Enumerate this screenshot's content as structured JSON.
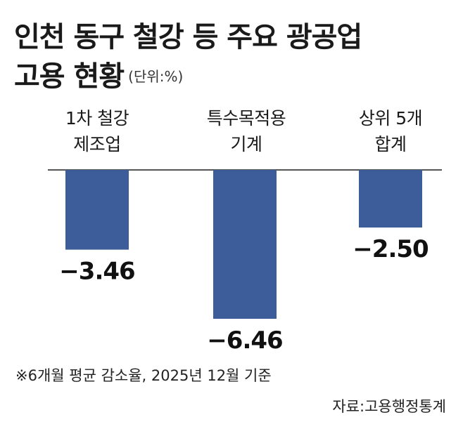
{
  "title": {
    "line1": "인천 동구 철강 등 주요 광공업",
    "line2": "고용 현황",
    "unit": "(단위:%)"
  },
  "footnote": "※6개월 평균 감소율, 2025년 12월 기준",
  "source": "자료:고용행정통계",
  "colors": {
    "bar": "#3d5d9a",
    "axis": "#555555"
  },
  "chart_data": {
    "type": "bar",
    "categories": [
      [
        "1차 철강",
        "제조업"
      ],
      [
        "특수목적용",
        "기계"
      ],
      [
        "상위 5개",
        "합계"
      ]
    ],
    "values": [
      -3.46,
      -6.46,
      -2.5
    ],
    "value_labels": [
      "−3.46",
      "−6.46",
      "−2.50"
    ],
    "ylim": [
      -6.46,
      0
    ],
    "grid": false,
    "legend": "none"
  }
}
